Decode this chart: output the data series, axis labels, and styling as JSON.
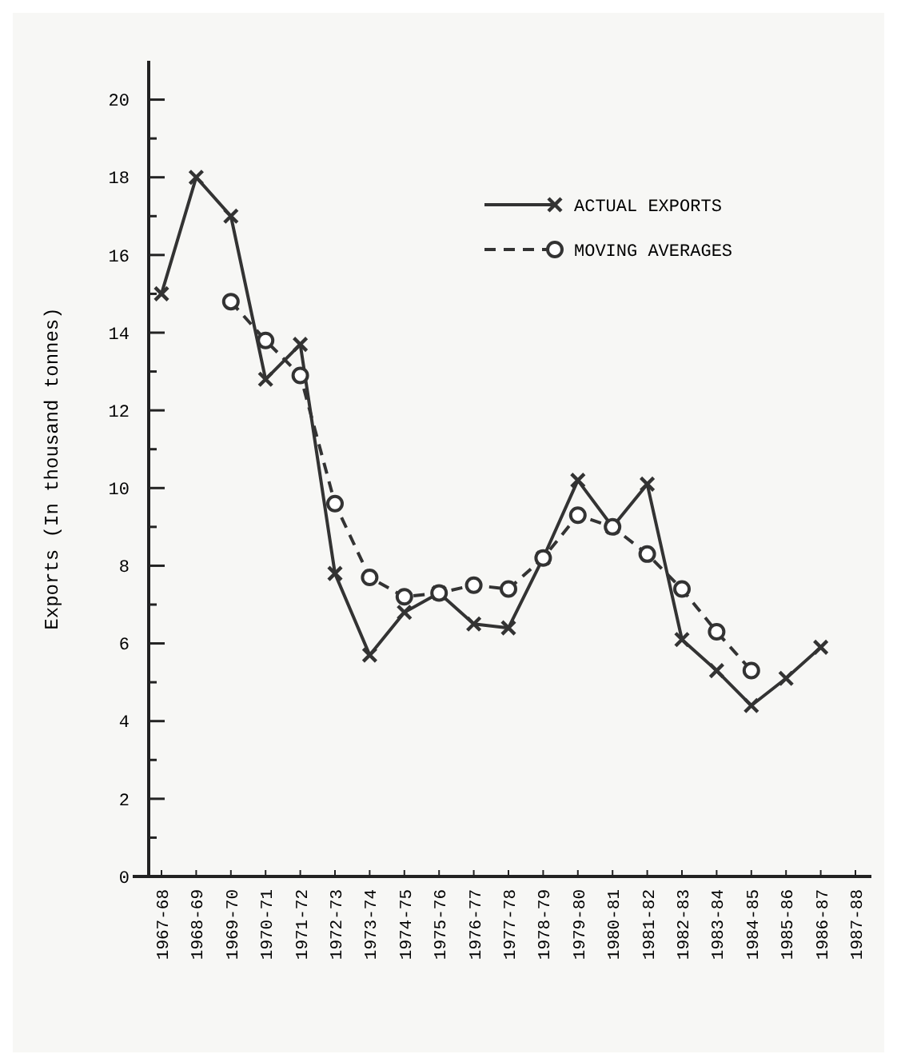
{
  "chart_data": {
    "type": "line",
    "ylabel": "Exports (In thousand tonnes)",
    "categories": [
      "1967-68",
      "1968-69",
      "1969-70",
      "1970-71",
      "1971-72",
      "1972-73",
      "1973-74",
      "1974-75",
      "1975-76",
      "1976-77",
      "1977-78",
      "1978-79",
      "1979-80",
      "1980-81",
      "1981-82",
      "1982-83",
      "1983-84",
      "1984-85",
      "1985-86",
      "1986-87",
      "1987-88"
    ],
    "series": [
      {
        "name": "ACTUAL EXPORTS",
        "color": "#333333",
        "marker": "cross",
        "line_style": "solid",
        "values": [
          15,
          18,
          17,
          12.8,
          13.7,
          7.8,
          5.7,
          6.8,
          7.3,
          6.5,
          6.4,
          8.2,
          10.2,
          9.0,
          10.1,
          6.1,
          5.3,
          4.4,
          5.1,
          5.9,
          null
        ]
      },
      {
        "name": "MOVING AVERAGES",
        "color": "#333333",
        "marker": "circle",
        "line_style": "dashed",
        "values": [
          null,
          null,
          14.8,
          13.8,
          12.9,
          9.6,
          7.7,
          7.2,
          7.3,
          7.5,
          7.4,
          8.2,
          9.3,
          9.0,
          8.3,
          7.4,
          6.3,
          5.3,
          null,
          null,
          null
        ]
      }
    ],
    "ylim": [
      0,
      21
    ],
    "yticks": [
      0,
      {
        "value": 1,
        "label": null
      },
      2,
      {
        "value": 3,
        "label": null
      },
      4,
      {
        "value": 5,
        "label": null
      },
      6,
      {
        "value": 7,
        "label": null
      },
      8,
      {
        "value": 9,
        "label": null
      },
      10,
      {
        "value": 11,
        "label": null
      },
      12,
      {
        "value": 13,
        "label": null
      },
      14,
      {
        "value": 15,
        "label": null
      },
      16,
      {
        "value": 17,
        "label": null
      },
      18,
      {
        "value": 19,
        "label": null
      },
      20
    ],
    "grid": false,
    "legend": "top right"
  }
}
